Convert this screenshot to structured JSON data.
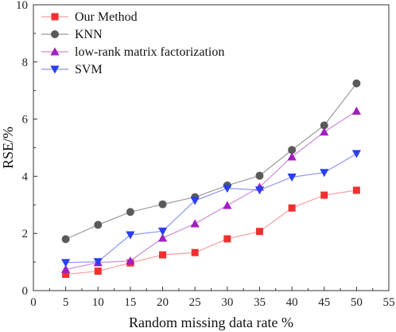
{
  "chart_data": {
    "type": "line",
    "xlabel": "Random missing data rate %",
    "ylabel": "RSE/%",
    "xlim": [
      0,
      55
    ],
    "ylim": [
      0,
      10
    ],
    "xticks": [
      0,
      5,
      10,
      15,
      20,
      25,
      30,
      35,
      40,
      45,
      50,
      55
    ],
    "yticks": [
      0,
      2,
      4,
      6,
      8,
      10
    ],
    "grid": false,
    "legend_position": "top-left",
    "x": [
      5,
      10,
      15,
      20,
      25,
      30,
      35,
      40,
      45,
      50
    ],
    "series": [
      {
        "name": "Our Method",
        "color": "#f03030",
        "line_color": "#f4a0a0",
        "marker": "square",
        "values": [
          0.57,
          0.68,
          0.97,
          1.25,
          1.33,
          1.81,
          2.07,
          2.89,
          3.34,
          3.51
        ]
      },
      {
        "name": "KNN",
        "color": "#5a5a5a",
        "line_color": "#9a9a9a",
        "marker": "circle",
        "values": [
          1.8,
          2.3,
          2.75,
          3.02,
          3.27,
          3.68,
          4.02,
          4.92,
          5.78,
          7.25
        ]
      },
      {
        "name": "low-rank matrix factorization",
        "color": "#a11fc0",
        "line_color": "#c98ad8",
        "marker": "triangle-up",
        "values": [
          0.74,
          0.98,
          1.04,
          1.84,
          2.34,
          2.98,
          3.62,
          4.68,
          5.55,
          6.28
        ]
      },
      {
        "name": "SVM",
        "color": "#2b3ef0",
        "line_color": "#8c96f0",
        "marker": "triangle-down",
        "values": [
          0.98,
          1.01,
          1.95,
          2.08,
          3.15,
          3.58,
          3.52,
          3.97,
          4.13,
          4.79
        ]
      }
    ]
  }
}
